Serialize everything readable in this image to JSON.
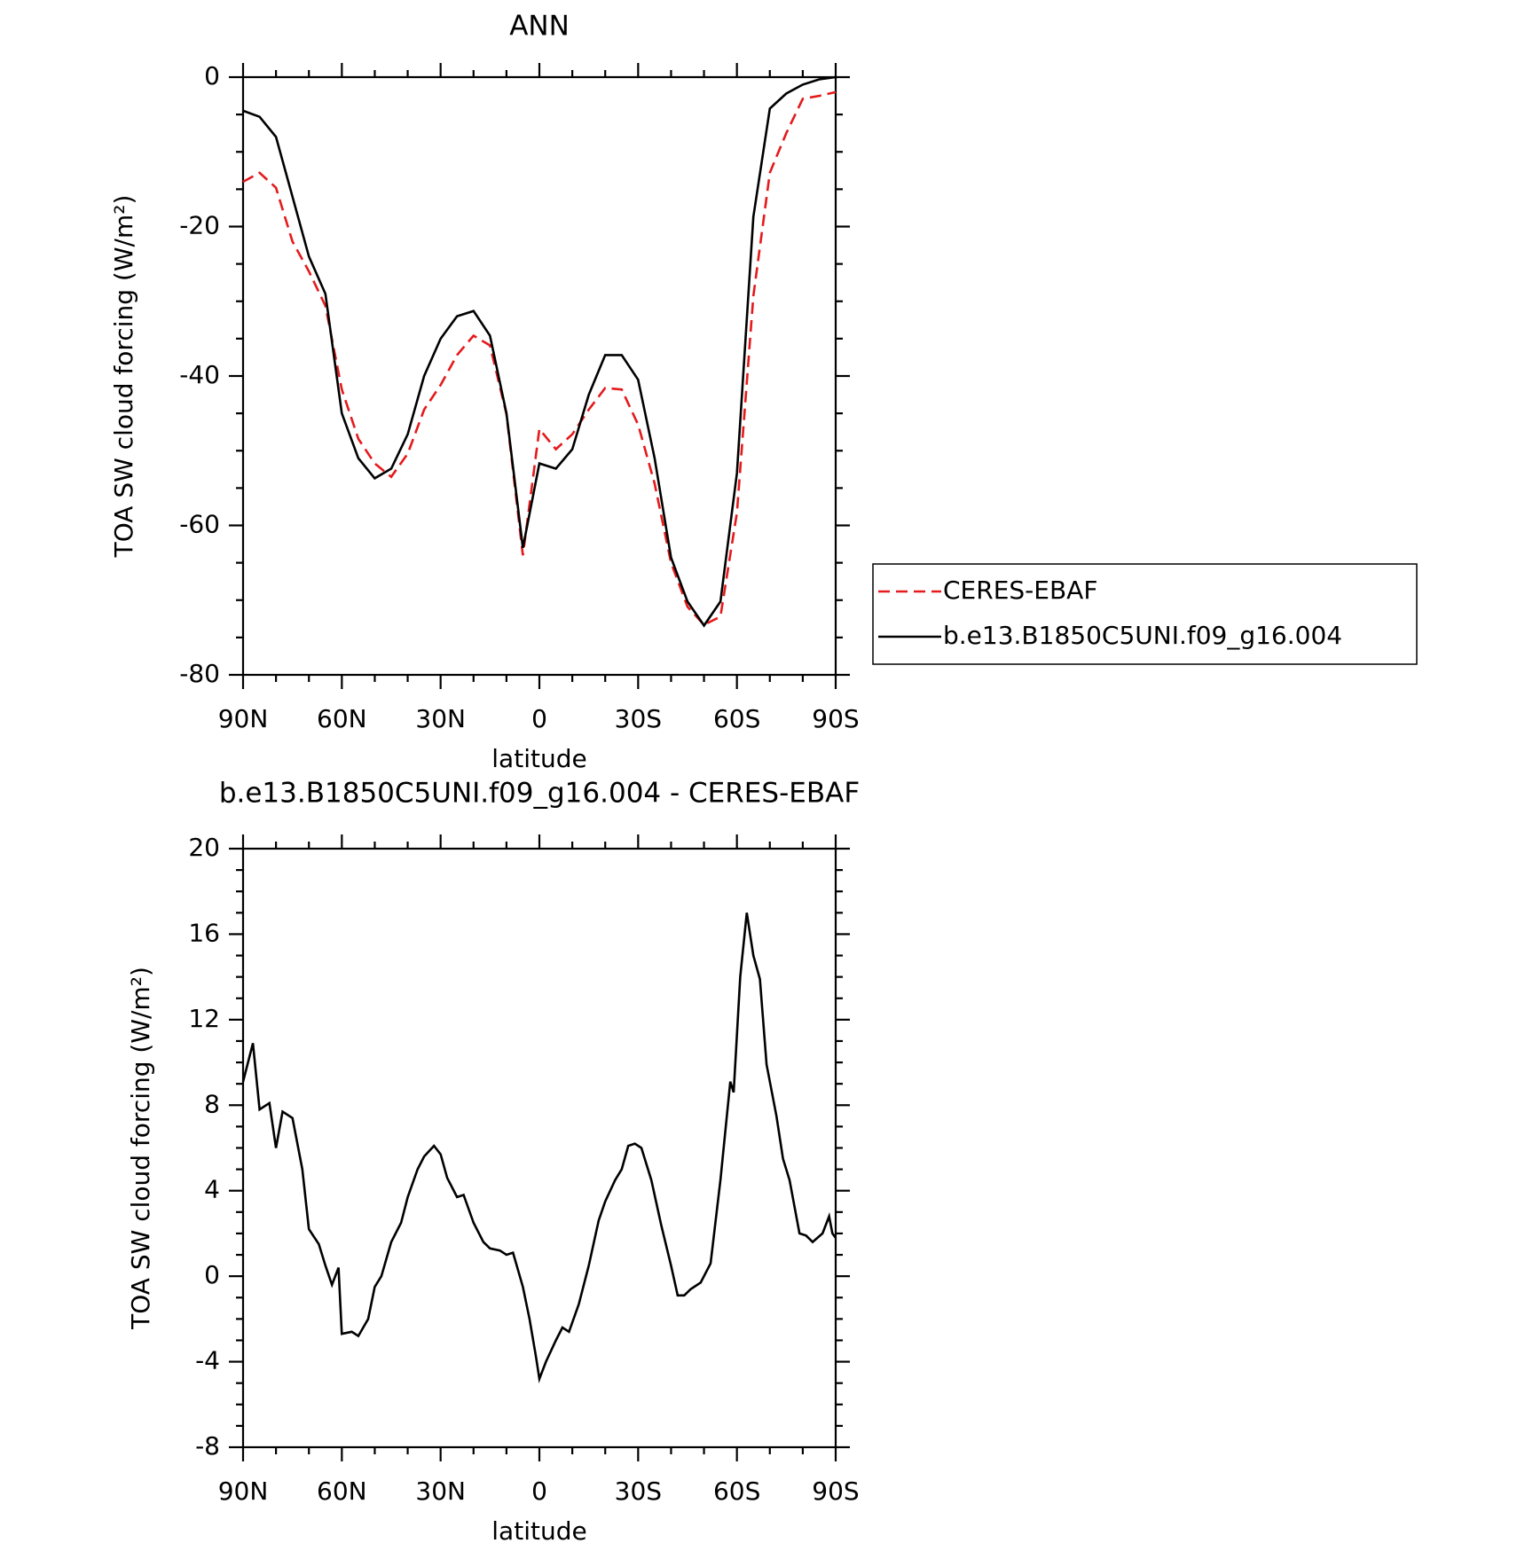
{
  "chart_data": [
    {
      "type": "line",
      "title": "ANN",
      "x_label": "latitude",
      "y_label": "TOA SW cloud forcing (W/m²)",
      "x": [
        90,
        85,
        80,
        75,
        70,
        65,
        60,
        55,
        50,
        45,
        40,
        35,
        30,
        25,
        20,
        15,
        10,
        5,
        0,
        -5,
        -10,
        -15,
        -20,
        -25,
        -30,
        -35,
        -40,
        -45,
        -50,
        -55,
        -60,
        -65,
        -70,
        -75,
        -80,
        -85,
        -90
      ],
      "series": [
        {
          "name": "CERES-EBAF",
          "color": "#e41a1c",
          "style": "dashed",
          "values": [
            -14,
            -12.8,
            -14.8,
            -22,
            -26,
            -30.6,
            -41.8,
            -48.4,
            -51.7,
            -53.5,
            -50.4,
            -44.5,
            -41.2,
            -37.2,
            -34.6,
            -35.9,
            -45.1,
            -64,
            -47.1,
            -49.8,
            -47.8,
            -44.5,
            -41.6,
            -41.8,
            -46.5,
            -54.4,
            -65,
            -70.9,
            -73.3,
            -72.2,
            -58.3,
            -29.3,
            -12.8,
            -7.5,
            -2.9,
            -2.5,
            -2
          ]
        },
        {
          "name": "b.e13.B1850C5UNI.f09_g16.004",
          "color": "#000000",
          "style": "solid",
          "values": [
            -4.5,
            -5.3,
            -8,
            -16,
            -24,
            -29,
            -45,
            -51,
            -53.7,
            -52.4,
            -47.8,
            -40,
            -35,
            -32,
            -31.3,
            -34.6,
            -45,
            -63,
            -51.7,
            -52.4,
            -49.8,
            -42.5,
            -37.2,
            -37.2,
            -40.5,
            -51,
            -64.3,
            -70.2,
            -73.4,
            -70.2,
            -53,
            -18.7,
            -4.2,
            -2.2,
            -1,
            -0.3,
            0
          ]
        }
      ],
      "xlim": [
        90,
        -90
      ],
      "xticks": [
        {
          "value": 90,
          "label": "90N"
        },
        {
          "value": 60,
          "label": "60N"
        },
        {
          "value": 30,
          "label": "30N"
        },
        0,
        {
          "value": -30,
          "label": "30S"
        },
        {
          "value": -60,
          "label": "60S"
        },
        {
          "value": -90,
          "label": "90S"
        }
      ],
      "ylim": [
        -80,
        0
      ],
      "yticks": [
        0,
        -20,
        -40,
        -60,
        -80
      ],
      "legend": "right"
    },
    {
      "type": "line",
      "title": "b.e13.B1850C5UNI.f09_g16.004 - CERES-EBAF",
      "x_label": "latitude",
      "y_label": "TOA SW cloud forcing (W/m²)",
      "x": [
        90,
        87,
        85,
        82,
        80,
        78,
        75,
        72,
        70,
        67,
        65,
        63,
        61,
        60,
        57,
        55,
        52,
        50,
        48,
        45,
        42,
        40,
        37,
        35,
        32,
        30,
        28,
        25,
        23,
        20,
        17,
        15,
        12,
        10,
        8,
        5,
        3,
        1,
        0,
        -2,
        -5,
        -7,
        -9,
        -12,
        -15,
        -18,
        -20,
        -23,
        -25,
        -27,
        -29,
        -31,
        -34,
        -37,
        -40,
        -42,
        -44,
        -46,
        -49,
        -52,
        -55,
        -58,
        -59,
        -61,
        -63,
        -65,
        -67,
        -69,
        -72,
        -74,
        -76,
        -79,
        -81,
        -83,
        -86,
        -88,
        -89,
        -90
      ],
      "series": [
        {
          "color": "#000000",
          "style": "solid",
          "values": [
            9.1,
            10.9,
            7.8,
            8.1,
            6.0,
            7.7,
            7.4,
            5.0,
            2.2,
            1.5,
            0.5,
            -0.4,
            0.4,
            -2.7,
            -2.6,
            -2.8,
            -2.0,
            -0.5,
            0.0,
            1.6,
            2.5,
            3.7,
            5.0,
            5.6,
            6.1,
            5.7,
            4.6,
            3.7,
            3.8,
            2.5,
            1.6,
            1.3,
            1.2,
            1.0,
            1.1,
            -0.5,
            -2.0,
            -3.8,
            -4.8,
            -4.0,
            -3.0,
            -2.4,
            -2.6,
            -1.3,
            0.5,
            2.6,
            3.5,
            4.5,
            5.0,
            6.1,
            6.2,
            6.0,
            4.5,
            2.4,
            0.5,
            -0.9,
            -0.9,
            -0.6,
            -0.3,
            0.6,
            4.5,
            9.1,
            8.6,
            14.0,
            17.0,
            15.0,
            13.9,
            9.9,
            7.5,
            5.5,
            4.5,
            2.0,
            1.9,
            1.6,
            2.0,
            2.8,
            2.0,
            1.8
          ]
        }
      ],
      "xlim": [
        90,
        -90
      ],
      "xticks": [
        {
          "value": 90,
          "label": "90N"
        },
        {
          "value": 60,
          "label": "60N"
        },
        {
          "value": 30,
          "label": "30N"
        },
        0,
        {
          "value": -30,
          "label": "30S"
        },
        {
          "value": -60,
          "label": "60S"
        },
        {
          "value": -90,
          "label": "90S"
        }
      ],
      "ylim": [
        -8,
        20
      ],
      "yticks": [
        20,
        16,
        12,
        8,
        4,
        0,
        -4,
        -8
      ]
    }
  ]
}
